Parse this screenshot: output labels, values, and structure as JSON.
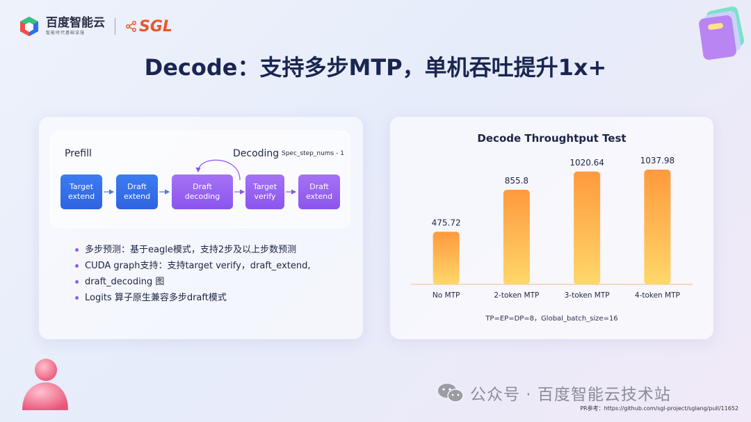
{
  "header": {
    "brand_name": "百度智能云",
    "brand_sub": "智能时代基础设施",
    "partner_logo": "SGL",
    "title": "Decode：支持多步MTP，单机吞吐提升1x+"
  },
  "flow": {
    "prefill_label": "Prefill",
    "decoding_label": "Decoding",
    "spec_label": "Spec_step_nums - 1",
    "nodes": [
      {
        "line1": "Target",
        "line2": "extend"
      },
      {
        "line1": "Draft",
        "line2": "extend"
      },
      {
        "line1": "Draft",
        "line2": "decoding"
      },
      {
        "line1": "Target",
        "line2": "verify"
      },
      {
        "line1": "Draft",
        "line2": "extend"
      }
    ]
  },
  "bullets": [
    "多步预测：基于eagle模式，支持2步及以上步数预测",
    "CUDA graph支持：支持target verify，draft_extend,",
    "draft_decoding 图",
    "Logits 算子原生兼容多步draft模式"
  ],
  "chart_data": {
    "type": "bar",
    "title": "Decode Throughtput Test",
    "categories": [
      "No MTP",
      "2-token MTP",
      "3-token MTP",
      "4-token MTP"
    ],
    "values": [
      475.72,
      855.8,
      1020.64,
      1037.98
    ],
    "value_labels": [
      "475.72",
      "855.8",
      "1020.64",
      "1037.98"
    ],
    "ylim": [
      0,
      1120
    ],
    "grid": false,
    "note": "TP=EP=DP=8，Global_batch_size=16",
    "bar_color_top": "#ff9a3e",
    "bar_color_bottom": "#ffd76a"
  },
  "footer": {
    "watermark": "公众号 · 百度智能云技术站",
    "pr_ref": "PR参考：https://github.com/sgl-project/sglang/pull/11652"
  }
}
